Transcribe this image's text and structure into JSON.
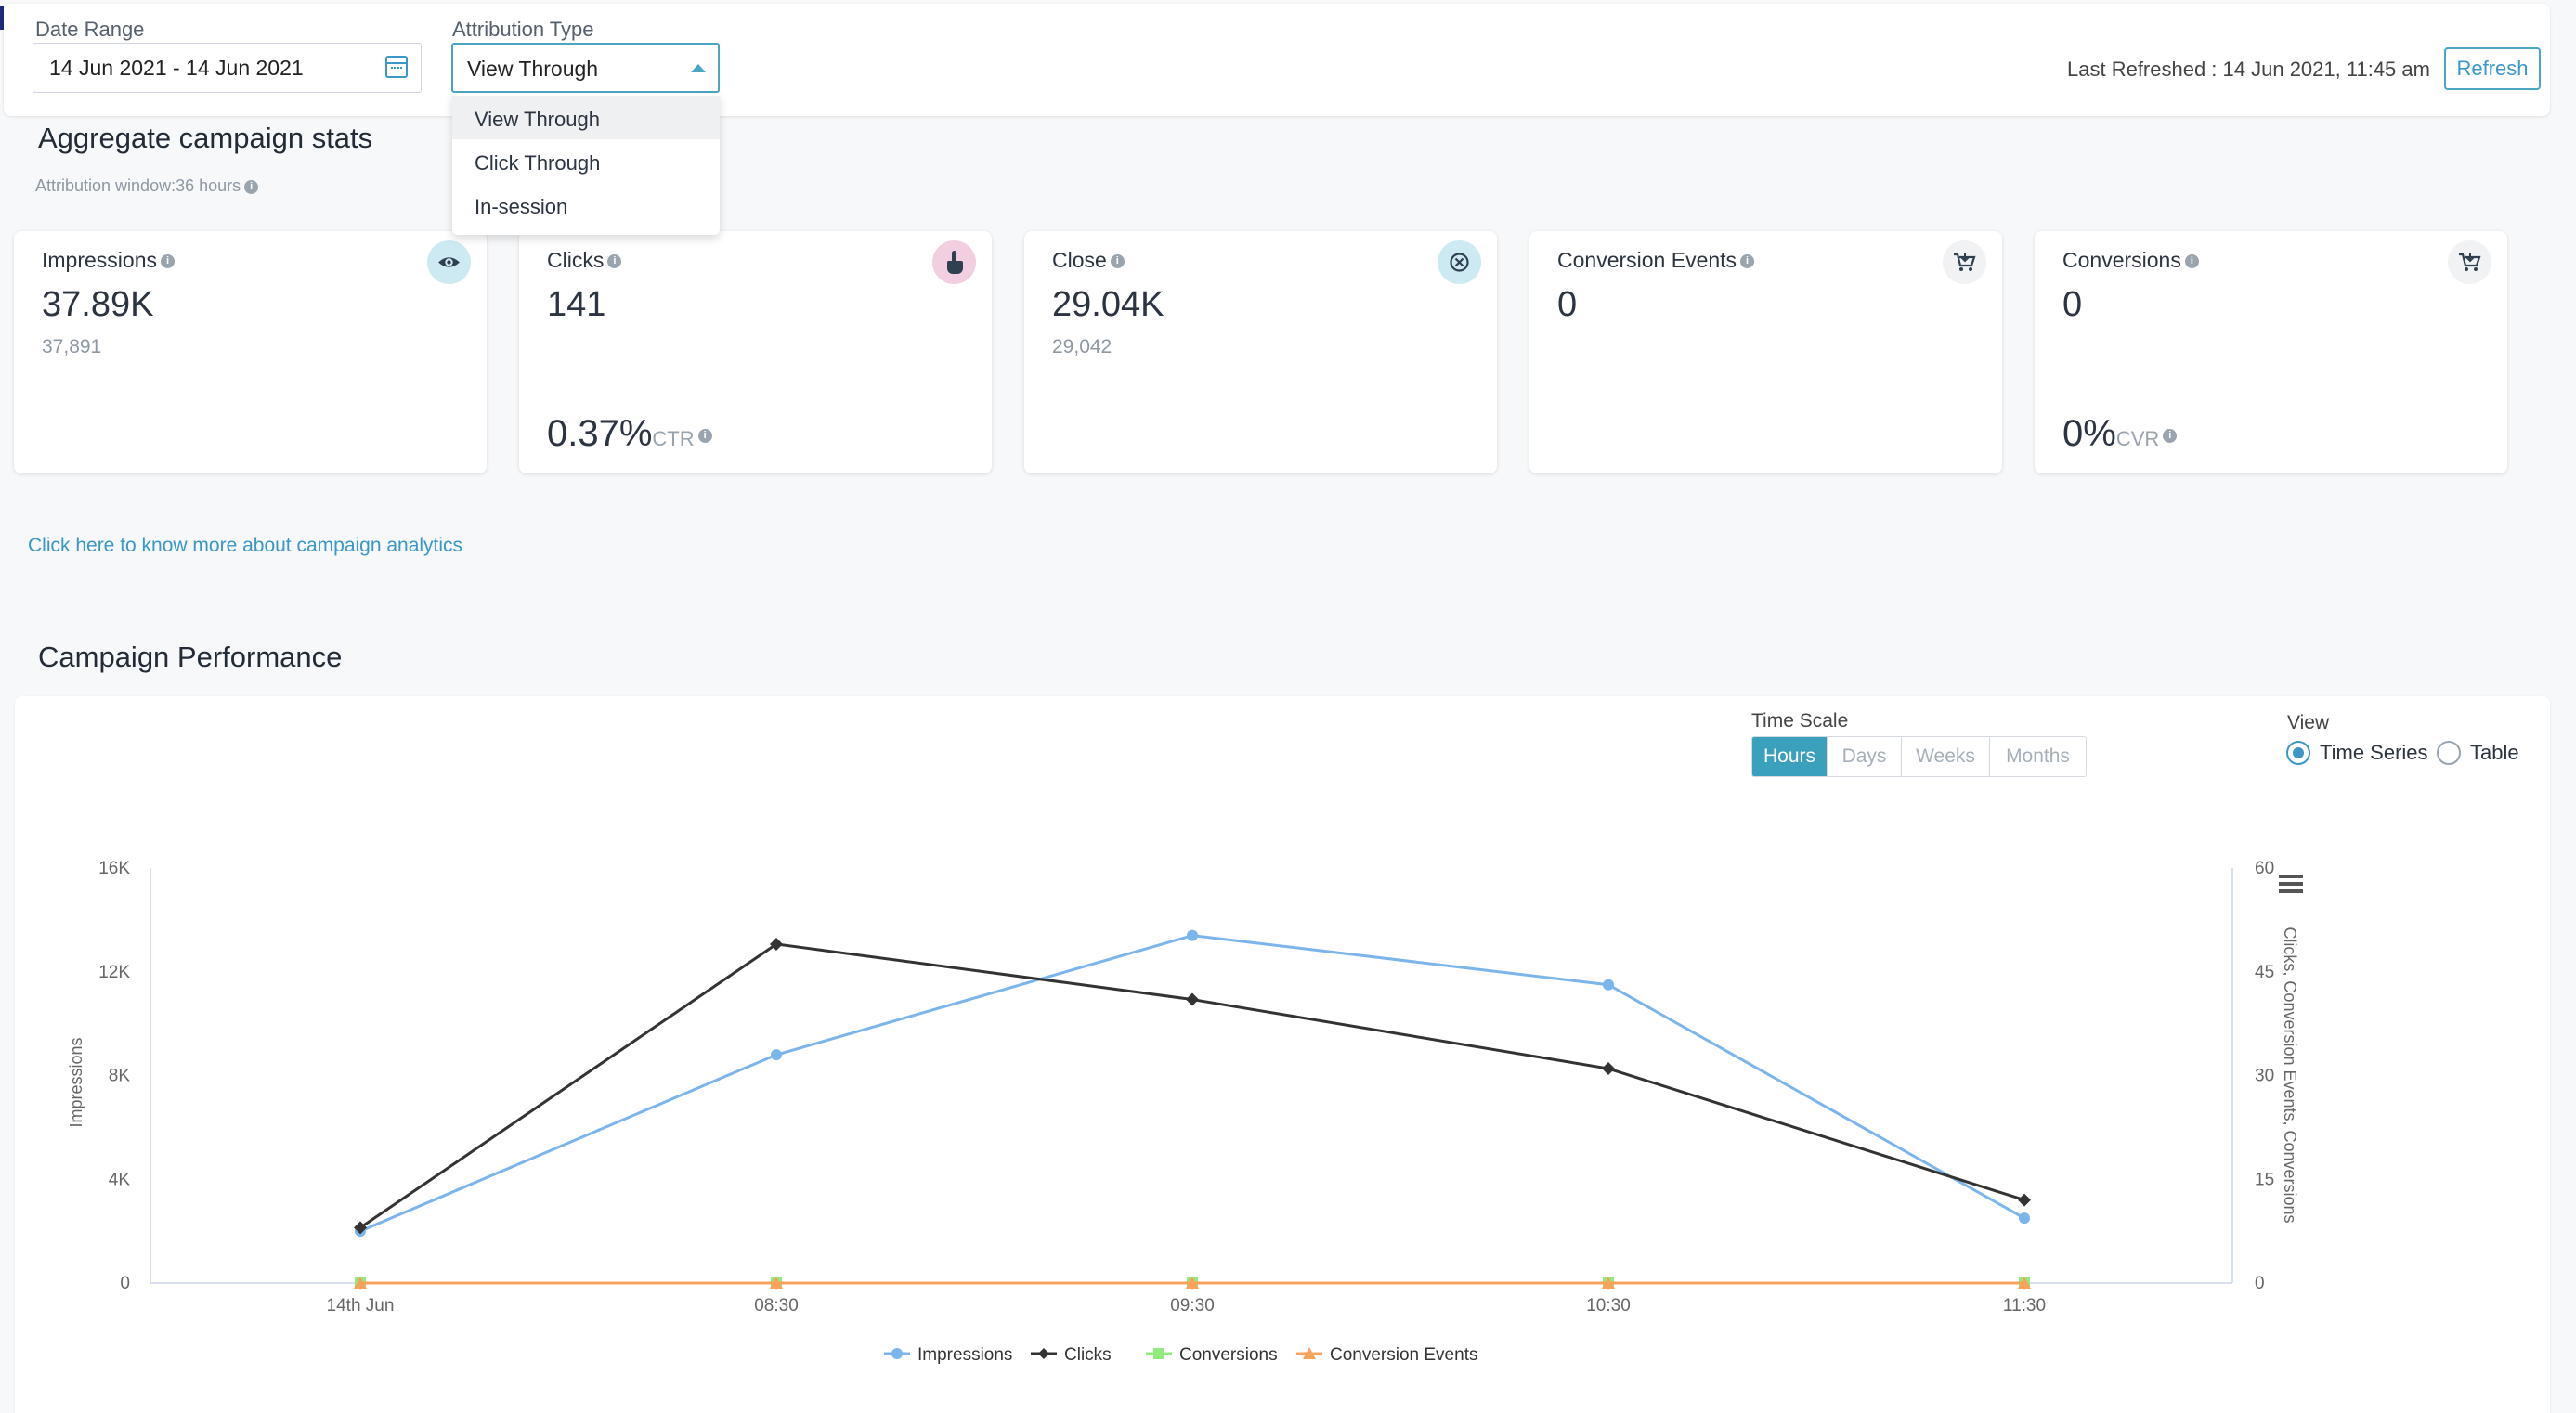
{
  "filters": {
    "date_range_label": "Date Range",
    "date_range_value": "14 Jun 2021 - 14 Jun 2021",
    "attribution_label": "Attribution Type",
    "attribution_value": "View Through",
    "attribution_options": [
      "View Through",
      "Click Through",
      "In-session"
    ],
    "last_refreshed": "Last Refreshed : 14 Jun 2021, 11:45 am",
    "refresh_label": "Refresh"
  },
  "aggregate": {
    "title": "Aggregate campaign stats",
    "attribution_window": "Attribution window:36 hours",
    "cards": [
      {
        "label": "Impressions",
        "value": "37.89K",
        "sub": "37,891",
        "icon": "eye-icon",
        "icon_bg": "#cde9f2",
        "icon_color": "#2f4050"
      },
      {
        "label": "Clicks",
        "value": "141",
        "rate": "0.37%",
        "rate_label": "CTR",
        "icon": "hand-pointer-icon",
        "icon_bg": "#f2cfe0",
        "icon_color": "#2f4050"
      },
      {
        "label": "Close",
        "value": "29.04K",
        "sub": "29,042",
        "icon": "close-circle-icon",
        "icon_bg": "#cde9f2",
        "icon_color": "#2f4050"
      },
      {
        "label": "Conversion Events",
        "value": "0",
        "icon": "cart-icon",
        "icon_bg": "#f0f2f4",
        "icon_color": "#2f4050"
      },
      {
        "label": "Conversions",
        "value": "0",
        "rate": "0%",
        "rate_label": "CVR",
        "icon": "cart-icon",
        "icon_bg": "#f0f2f4",
        "icon_color": "#2f4050"
      }
    ],
    "help_link": "Click here to know more about campaign analytics"
  },
  "performance": {
    "title": "Campaign Performance",
    "time_scale_label": "Time Scale",
    "time_scale_options": [
      "Hours",
      "Days",
      "Weeks",
      "Months"
    ],
    "time_scale_active": "Hours",
    "view_label": "View",
    "view_options": [
      "Time Series",
      "Table"
    ],
    "view_active": "Time Series"
  },
  "chart_data": {
    "type": "line",
    "categories": [
      "14th Jun",
      "08:30",
      "09:30",
      "10:30",
      "11:30"
    ],
    "y_left": {
      "label": "Impressions",
      "ticks": [
        "0",
        "4K",
        "8K",
        "12K",
        "16K"
      ],
      "range": [
        0,
        16000
      ]
    },
    "y_right": {
      "label": "Clicks, Conversion Events, Conversions",
      "ticks": [
        "0",
        "15",
        "30",
        "45",
        "60"
      ],
      "range": [
        0,
        60
      ]
    },
    "series": [
      {
        "name": "Impressions",
        "axis": "left",
        "color": "#7cb5ec",
        "marker": "circle",
        "values": [
          2000,
          8800,
          13400,
          11500,
          2500
        ]
      },
      {
        "name": "Clicks",
        "axis": "right",
        "color": "#333333",
        "marker": "diamond",
        "values": [
          8,
          49,
          41,
          31,
          12
        ]
      },
      {
        "name": "Conversions",
        "axis": "right",
        "color": "#90ed7d",
        "marker": "square",
        "values": [
          0,
          0,
          0,
          0,
          0
        ]
      },
      {
        "name": "Conversion Events",
        "axis": "right",
        "color": "#f7a35c",
        "marker": "triangle",
        "values": [
          0,
          0,
          0,
          0,
          0
        ]
      }
    ],
    "grid": false,
    "legend": "bottom-center"
  }
}
